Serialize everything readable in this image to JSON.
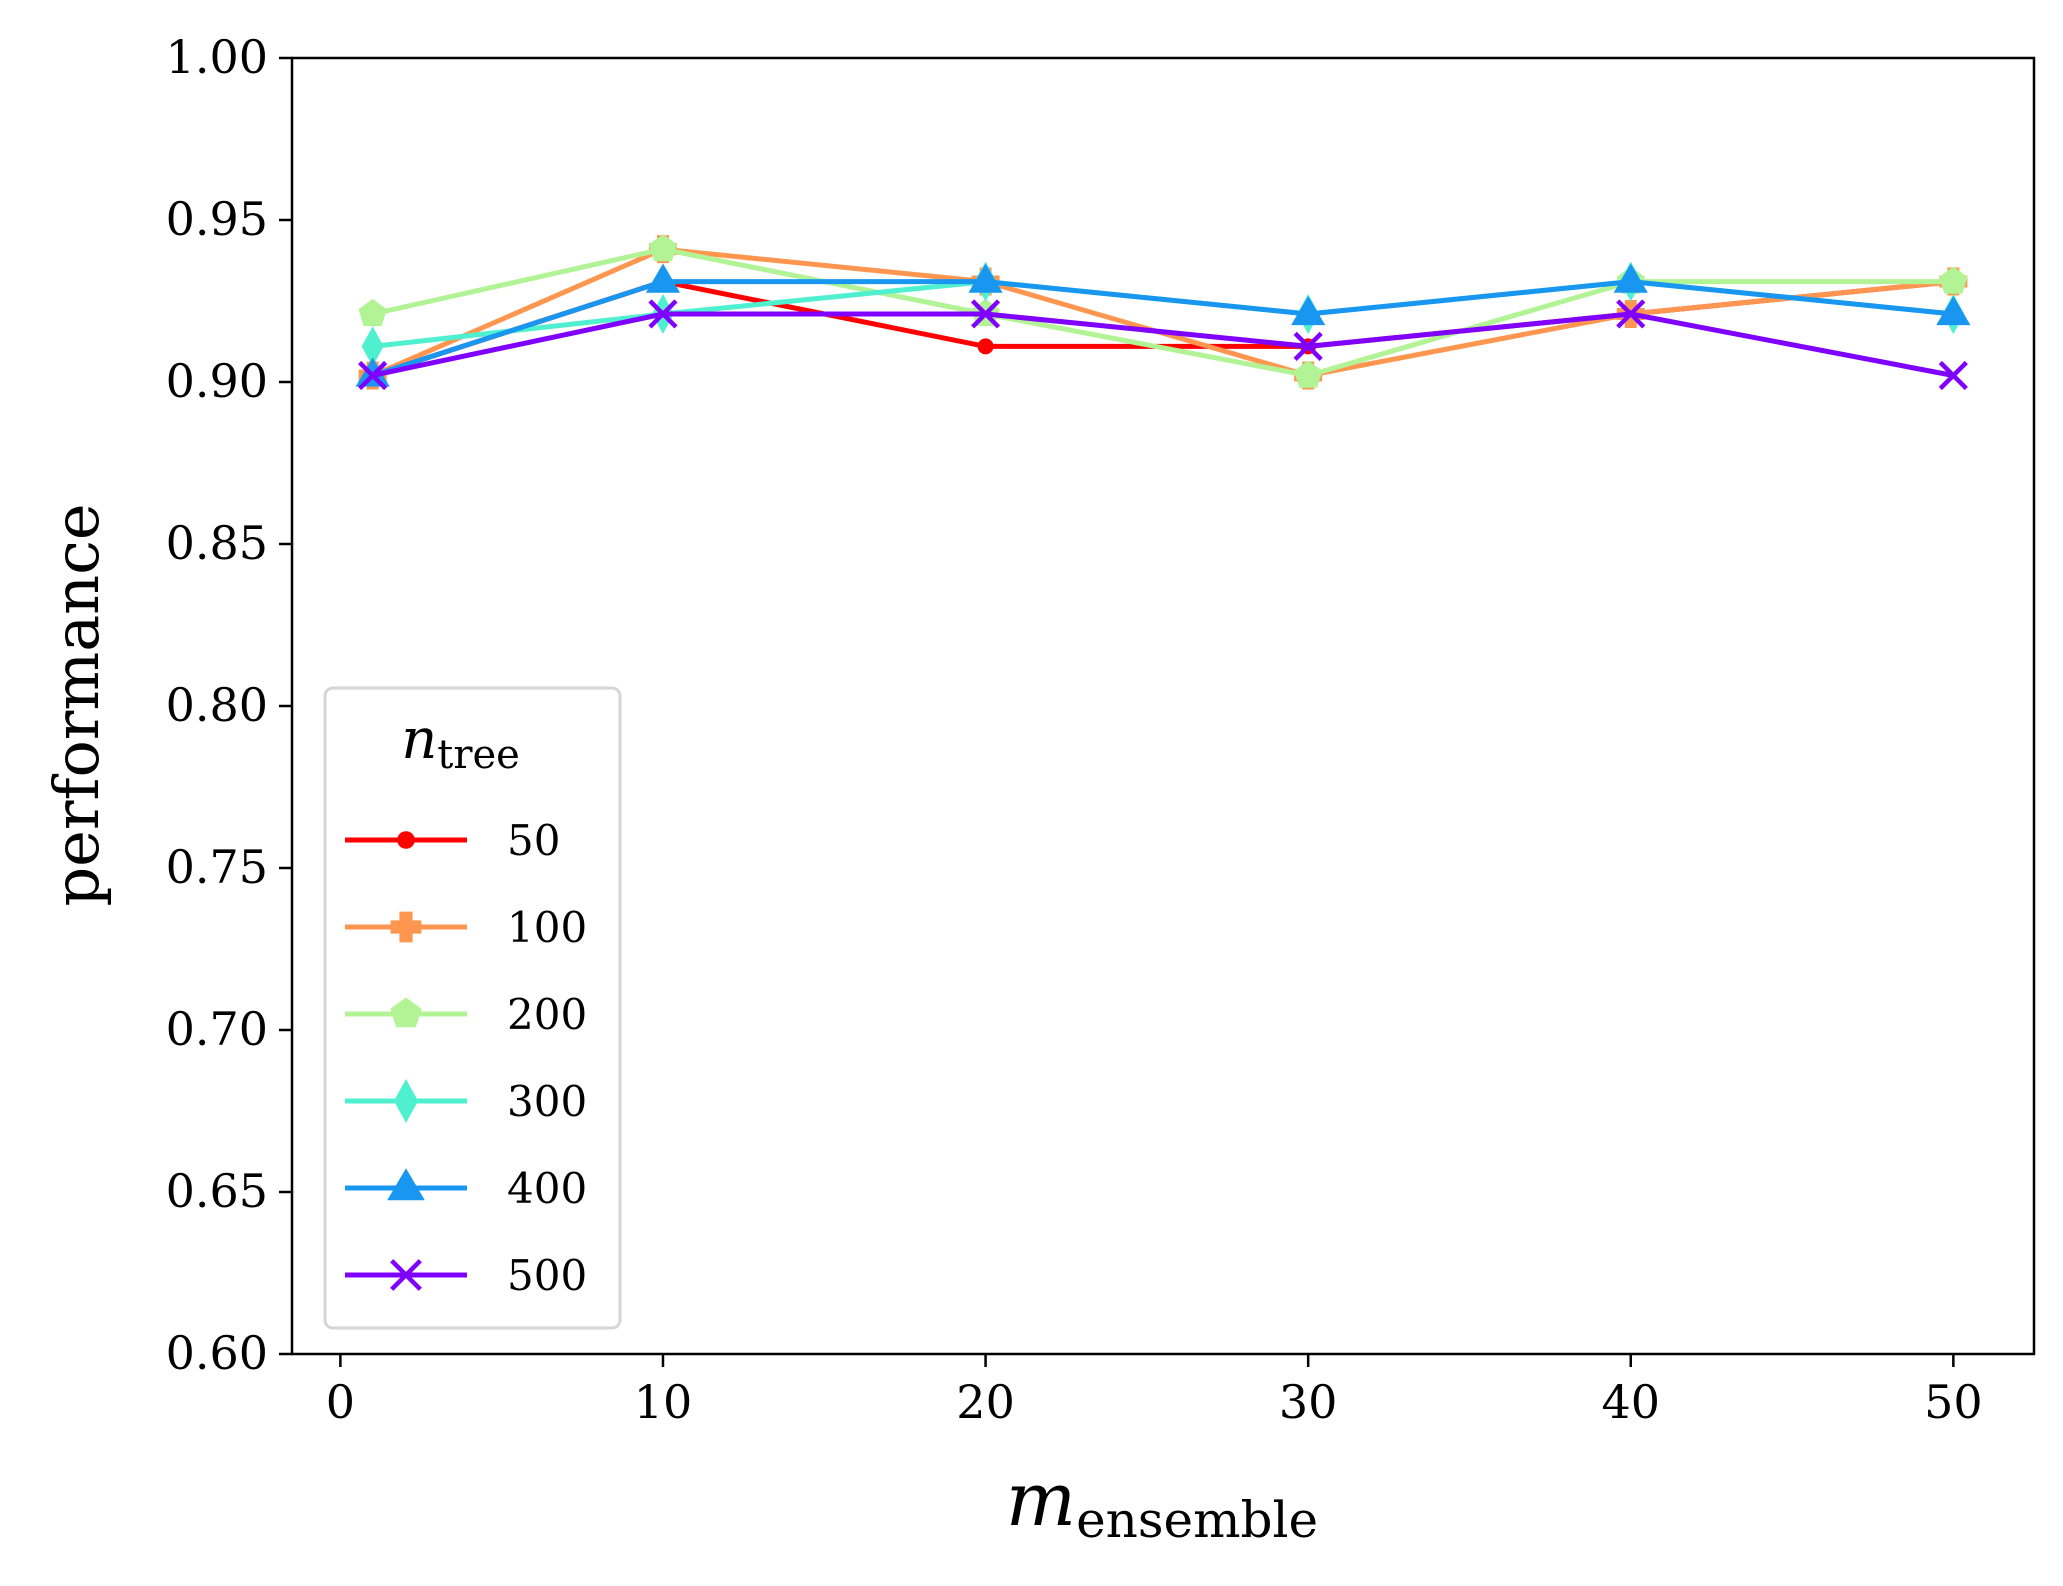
{
  "chart_data": {
    "type": "line",
    "xlabel_main": "m",
    "xlabel_sub": "ensemble",
    "ylabel": "performance",
    "xlim": [
      -1.5,
      52.5
    ],
    "ylim": [
      0.6,
      1.0
    ],
    "xticks": [
      0,
      10,
      20,
      30,
      40,
      50
    ],
    "xtick_labels": [
      "0",
      "10",
      "20",
      "30",
      "40",
      "50"
    ],
    "yticks": [
      0.6,
      0.65,
      0.7,
      0.75,
      0.8,
      0.85,
      0.9,
      0.95,
      1.0
    ],
    "ytick_labels": [
      "0.60",
      "0.65",
      "0.70",
      "0.75",
      "0.80",
      "0.85",
      "0.90",
      "0.95",
      "1.00"
    ],
    "x": [
      1,
      10,
      20,
      30,
      40,
      50
    ],
    "legend": {
      "title_main": "n",
      "title_sub": "tree",
      "position": "lower-left"
    },
    "series": [
      {
        "name": "50",
        "color": "#ff0000",
        "marker": "circle",
        "values": [
          0.902,
          0.931,
          0.911,
          0.911,
          0.921,
          0.931
        ]
      },
      {
        "name": "100",
        "color": "#ff9650",
        "marker": "plus",
        "values": [
          0.902,
          0.941,
          0.931,
          0.902,
          0.921,
          0.931
        ]
      },
      {
        "name": "200",
        "color": "#b2f396",
        "marker": "pentagon",
        "values": [
          0.921,
          0.941,
          0.921,
          0.902,
          0.931,
          0.931
        ]
      },
      {
        "name": "300",
        "color": "#4ff0d0",
        "marker": "diamond",
        "values": [
          0.911,
          0.921,
          0.931,
          0.921,
          0.931,
          0.921
        ]
      },
      {
        "name": "400",
        "color": "#1996f0",
        "marker": "triangle",
        "values": [
          0.902,
          0.931,
          0.931,
          0.921,
          0.931,
          0.921
        ]
      },
      {
        "name": "500",
        "color": "#8000ff",
        "marker": "x",
        "values": [
          0.902,
          0.921,
          0.921,
          0.911,
          0.921,
          0.902
        ]
      }
    ]
  }
}
